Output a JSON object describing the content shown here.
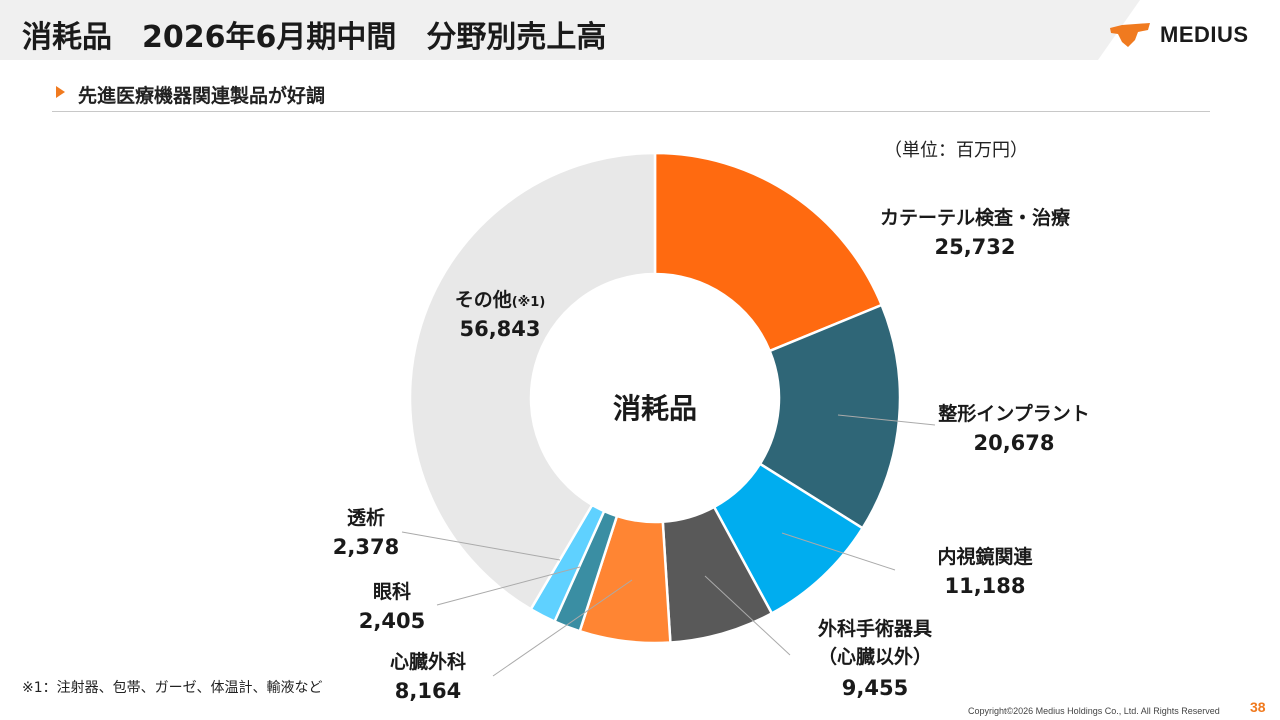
{
  "header": {
    "title": "消耗品　2026年6月期中間　分野別売上高",
    "subtitle": "先進医療機器関連製品が好調",
    "logo_text": "MEDIUS"
  },
  "unit_label": "（単位：百万円）",
  "chart_data": {
    "type": "pie",
    "variant": "donut",
    "center_label": "消耗品",
    "start_angle_deg": 0,
    "direction": "clockwise",
    "slices": [
      {
        "name": "カテーテル検査・治療",
        "value": 25732,
        "value_label": "25,732",
        "color": "#ff6a10"
      },
      {
        "name": "整形インプラント",
        "value": 20678,
        "value_label": "20,678",
        "color": "#2f6677"
      },
      {
        "name": "内視鏡関連",
        "value": 11188,
        "value_label": "11,188",
        "color": "#00adef"
      },
      {
        "name": "外科手術器具",
        "name_line2": "（心臓以外）",
        "value": 9455,
        "value_label": "9,455",
        "color": "#595959"
      },
      {
        "name": "心臓外科",
        "value": 8164,
        "value_label": "8,164",
        "color": "#ff8533"
      },
      {
        "name": "眼科",
        "value": 2405,
        "value_label": "2,405",
        "color": "#3a8ea3"
      },
      {
        "name": "透析",
        "value": 2378,
        "value_label": "2,378",
        "color": "#5fd1ff"
      },
      {
        "name": "その他",
        "name_note": "(※1)",
        "value": 56843,
        "value_label": "56,843",
        "color": "#e8e8e8"
      }
    ]
  },
  "footnote": "※1：注射器、包帯、ガーゼ、体温計、輸液など",
  "copyright": "Copyright©2026 Medius Holdings Co., Ltd. All Rights Reserved",
  "page_number": "38"
}
